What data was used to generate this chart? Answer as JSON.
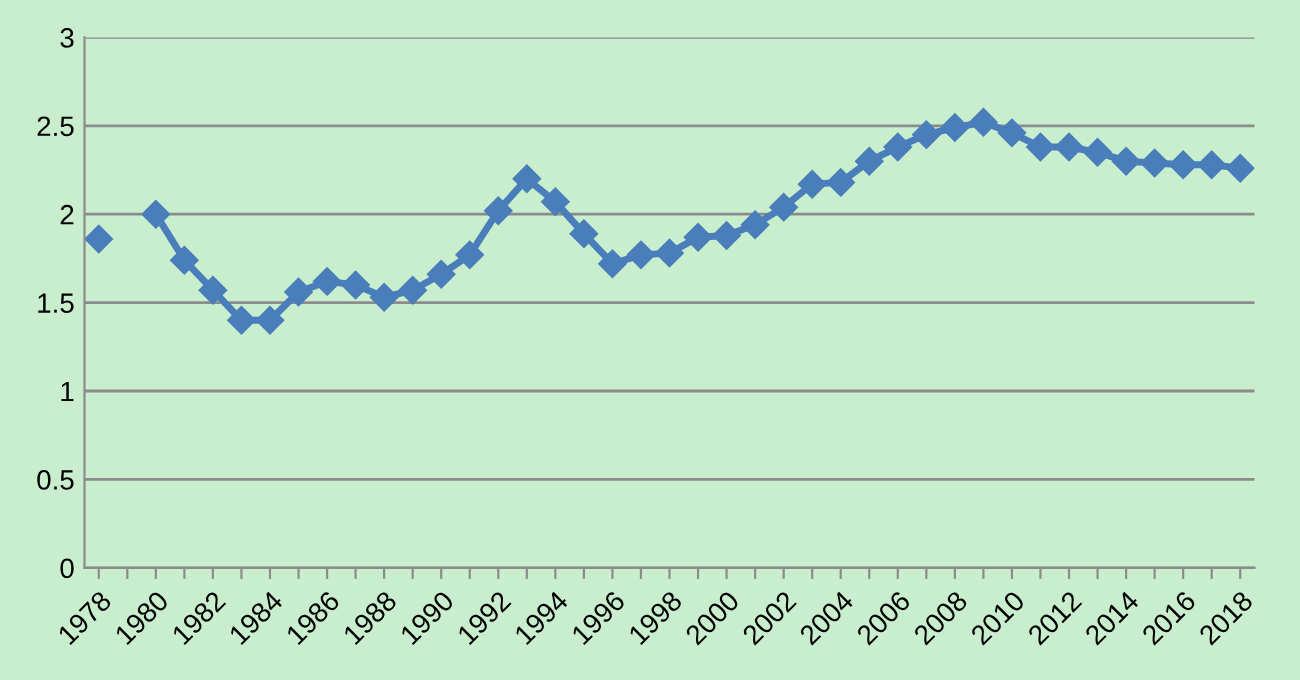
{
  "chart_data": {
    "type": "line",
    "categories": [
      "1978",
      null,
      "1980",
      null,
      "1982",
      null,
      "1984",
      null,
      "1986",
      null,
      "1988",
      null,
      "1990",
      null,
      "1992",
      null,
      "1994",
      null,
      "1996",
      null,
      "1998",
      null,
      "2000",
      null,
      "2002",
      null,
      "2004",
      null,
      "2006",
      null,
      "2008",
      null,
      "2010",
      null,
      "2012",
      null,
      "2014",
      null,
      "2016",
      null,
      "2018"
    ],
    "series": [
      {
        "color": "#4a7ebb",
        "values": [
          1.86,
          null,
          2.0,
          1.74,
          1.57,
          1.4,
          1.4,
          1.56,
          1.62,
          1.6,
          1.53,
          1.57,
          1.66,
          1.77,
          2.02,
          2.2,
          2.07,
          1.89,
          1.72,
          1.77,
          1.78,
          1.87,
          1.88,
          1.94,
          2.04,
          2.17,
          2.18,
          2.3,
          2.38,
          2.45,
          2.49,
          2.52,
          2.46,
          2.38,
          2.38,
          2.35,
          2.3,
          2.29,
          2.28,
          2.28,
          2.26
        ]
      }
    ],
    "ylim": [
      0,
      3
    ],
    "yticks": [
      0,
      0.5,
      1,
      1.5,
      2,
      2.5,
      3
    ],
    "grid": "y",
    "marker": "diamond",
    "line_style": "solid",
    "legend": false
  }
}
